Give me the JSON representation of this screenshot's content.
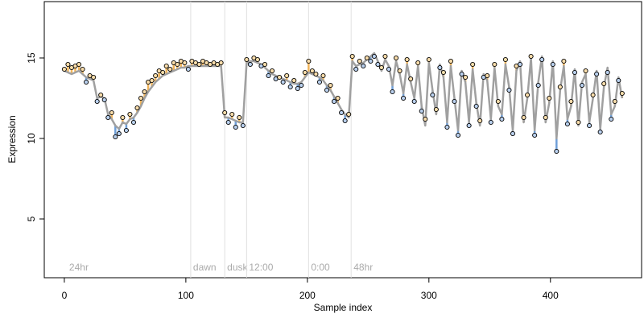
{
  "chart_data": {
    "type": "line",
    "xlabel": "Sample index",
    "ylabel": "Expression",
    "xlim": [
      -16.5,
      475
    ],
    "ylim": [
      1.35,
      18.5
    ],
    "xticks": [
      0,
      100,
      200,
      300,
      400
    ],
    "yticks": [
      5,
      10,
      15
    ],
    "grid": false,
    "above_color": "#f0b45a",
    "below_color": "#6f9fd8",
    "point_fill_above": "#f8dcaa",
    "point_fill_below": "#b9d0ee",
    "annotations": [
      {
        "x": 2,
        "text": "24hr",
        "line": false
      },
      {
        "x": 104,
        "text": "dawn",
        "line": true
      },
      {
        "x": 132,
        "text": "dusk",
        "line": true
      },
      {
        "x": 150,
        "text": "12:00",
        "line": true
      },
      {
        "x": 201,
        "text": "0:00",
        "line": true
      },
      {
        "x": 236,
        "text": "48hr",
        "line": true
      }
    ],
    "x": [
      0,
      3,
      6,
      9,
      12,
      15,
      18,
      21,
      24,
      27,
      30,
      33,
      36,
      39,
      42,
      45,
      48,
      51,
      54,
      57,
      60,
      63,
      66,
      69,
      72,
      75,
      78,
      81,
      84,
      87,
      90,
      93,
      96,
      99,
      102,
      105,
      108,
      111,
      114,
      117,
      120,
      123,
      126,
      129,
      132,
      135,
      138,
      141,
      144,
      147,
      150,
      153,
      156,
      159,
      162,
      165,
      168,
      171,
      174,
      177,
      180,
      183,
      186,
      189,
      192,
      195,
      198,
      201,
      204,
      207,
      210,
      213,
      216,
      219,
      222,
      225,
      228,
      231,
      234,
      237,
      240,
      243,
      246,
      249,
      252,
      255,
      258,
      261,
      264,
      267,
      270,
      273,
      276,
      279,
      282,
      285,
      288,
      291,
      294,
      297,
      300,
      303,
      306,
      309,
      312,
      315,
      318,
      321,
      324,
      327,
      330,
      333,
      336,
      339,
      342,
      345,
      348,
      351,
      354,
      357,
      360,
      363,
      366,
      369,
      372,
      375,
      378,
      381,
      384,
      387,
      390,
      393,
      396,
      399,
      402,
      405,
      408,
      411,
      414,
      417,
      420,
      423,
      426,
      429,
      432,
      435,
      438,
      441,
      444,
      447,
      450,
      453,
      456,
      459
    ],
    "series": [
      {
        "color": "#a0a0a0",
        "style": "line",
        "values": [
          14.2,
          14.1,
          14.0,
          14.1,
          14.2,
          14.0,
          13.8,
          13.7,
          13.6,
          12.5,
          12.6,
          12.5,
          11.5,
          11.2,
          10.8,
          10.6,
          11.0,
          10.9,
          11.2,
          11.3,
          11.6,
          12.0,
          12.5,
          12.9,
          13.2,
          13.5,
          13.7,
          13.9,
          14.0,
          14.1,
          14.2,
          14.3,
          14.4,
          14.4,
          14.5,
          14.5,
          14.5,
          14.5,
          14.5,
          14.5,
          14.5,
          14.5,
          14.5,
          14.5,
          11.3,
          11.3,
          11.2,
          11.1,
          11.0,
          11.0,
          14.7,
          14.8,
          14.8,
          14.7,
          14.6,
          14.4,
          14.2,
          14.0,
          13.9,
          13.8,
          13.7,
          13.6,
          13.5,
          13.4,
          13.4,
          13.5,
          13.8,
          14.1,
          14.0,
          13.9,
          13.8,
          13.6,
          13.3,
          13.0,
          12.6,
          12.2,
          11.8,
          11.5,
          11.3,
          14.8,
          14.5,
          14.6,
          14.7,
          14.9,
          15.1,
          15.3,
          14.8,
          14.2,
          14.9,
          14.5,
          13.3,
          14.8,
          14.0,
          12.8,
          14.6,
          13.5,
          12.5,
          14.5,
          12.0,
          10.8,
          14.7,
          13.0,
          11.5,
          14.6,
          13.8,
          11.0,
          14.5,
          12.5,
          10.5,
          14.2,
          13.5,
          11.0,
          14.3,
          12.2,
          10.8,
          14.0,
          13.6,
          11.2,
          14.4,
          12.0,
          11.5,
          14.6,
          13.2,
          10.5,
          14.2,
          14.8,
          11.0,
          12.5,
          15.0,
          10.5,
          13.5,
          15.1,
          11.0,
          12.2,
          14.8,
          10.0,
          13.0,
          14.5,
          11.2,
          12.0,
          14.3,
          10.8,
          13.5,
          14.0,
          11.0,
          12.5,
          14.2,
          10.6,
          13.2,
          14.4,
          11.5,
          12.0,
          13.8,
          12.5
        ]
      },
      {
        "color": "#000000",
        "style": "points",
        "values": [
          14.3,
          14.6,
          14.4,
          14.5,
          14.6,
          14.3,
          13.5,
          13.9,
          13.8,
          12.3,
          12.7,
          12.4,
          11.3,
          11.6,
          10.1,
          10.3,
          11.3,
          10.5,
          11.5,
          11.0,
          11.9,
          12.5,
          12.9,
          13.5,
          13.6,
          13.9,
          14.2,
          14.1,
          14.5,
          14.3,
          14.7,
          14.6,
          14.8,
          14.7,
          14.3,
          14.8,
          14.7,
          14.6,
          14.8,
          14.7,
          14.6,
          14.7,
          14.6,
          14.7,
          11.6,
          11.0,
          11.5,
          10.7,
          11.3,
          10.8,
          14.9,
          14.6,
          15.0,
          14.9,
          14.5,
          14.6,
          13.9,
          14.2,
          13.7,
          13.8,
          13.5,
          13.9,
          13.2,
          13.6,
          13.1,
          13.3,
          14.1,
          14.8,
          14.2,
          14.0,
          13.5,
          13.9,
          13.0,
          13.3,
          12.3,
          12.5,
          11.6,
          11.1,
          11.5,
          15.1,
          14.3,
          14.8,
          14.5,
          15.0,
          14.8,
          15.1,
          14.6,
          14.4,
          15.1,
          14.3,
          12.9,
          15.0,
          14.2,
          12.5,
          14.9,
          13.7,
          12.3,
          14.7,
          11.7,
          11.2,
          14.9,
          12.7,
          11.8,
          14.4,
          14.1,
          10.7,
          14.8,
          12.3,
          10.2,
          14.0,
          13.8,
          10.8,
          14.6,
          12.0,
          11.1,
          13.8,
          13.9,
          11.0,
          14.6,
          12.3,
          11.2,
          14.9,
          13.0,
          10.3,
          14.5,
          14.6,
          11.3,
          12.7,
          15.1,
          10.2,
          13.3,
          14.9,
          11.3,
          12.5,
          14.6,
          9.2,
          13.2,
          14.8,
          10.9,
          12.3,
          14.1,
          11.0,
          13.3,
          14.2,
          10.8,
          12.7,
          14.0,
          10.4,
          13.4,
          14.1,
          11.2,
          12.3,
          13.6,
          12.8
        ]
      }
    ]
  }
}
